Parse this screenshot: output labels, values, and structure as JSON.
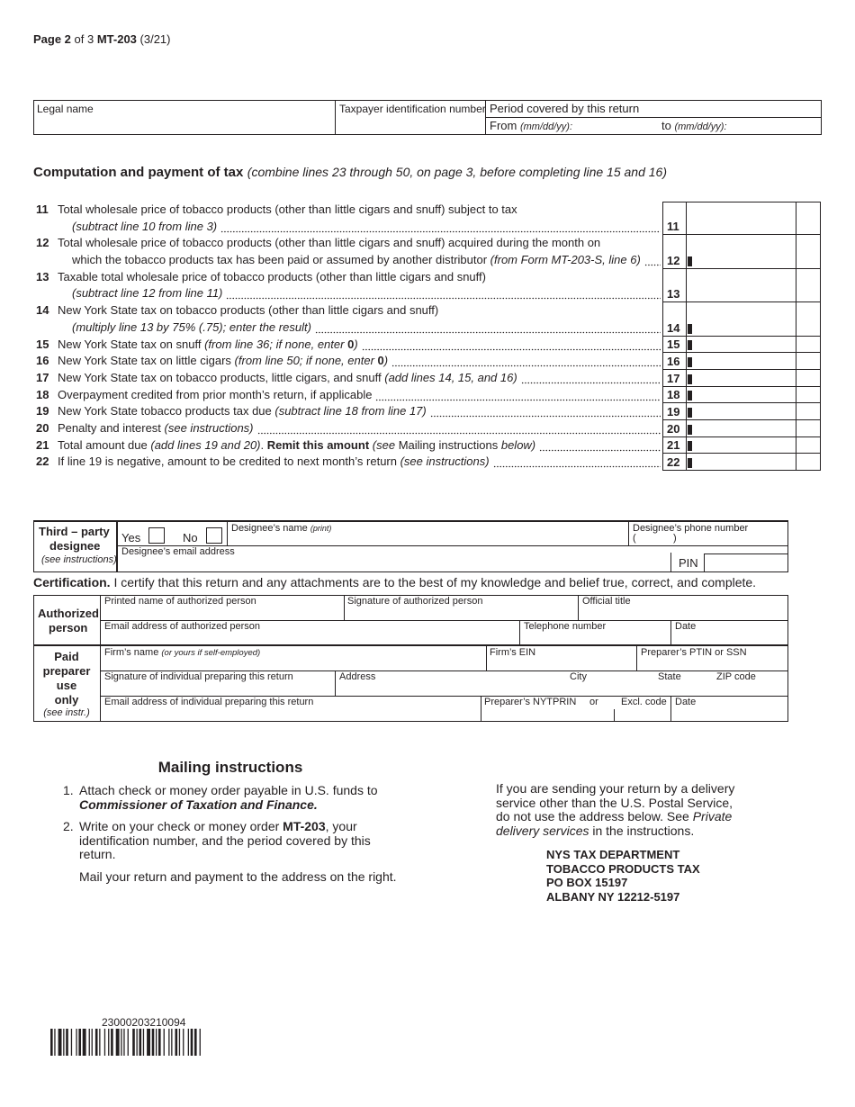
{
  "page_header": [
    {
      "text": "Page 2",
      "style": "b"
    },
    {
      "text": " of 3 "
    },
    {
      "text": " MT-203",
      "style": "b"
    },
    {
      "text": " (3/21)"
    }
  ],
  "id_box": {
    "legal_name": "Legal name",
    "tin": "Taxpayer identification number",
    "period": "Period covered by this return",
    "from": "From",
    "from_fmt": "(mm/dd/yy):",
    "to": "to",
    "to_fmt": "(mm/dd/yy):"
  },
  "computation": {
    "title": "Computation and payment of tax",
    "note": "(combine lines 23 through 50, on page 3, before completing line 15 and 16)",
    "lines": [
      {
        "number": "11",
        "rows": [
          [
            {
              "text": "Total wholesale price of tobacco products (other than little cigars and snuff) subject to tax"
            }
          ],
          [
            {
              "text": "(subtract line 10 from line 3)",
              "style": "i"
            }
          ]
        ]
      },
      {
        "number": "12",
        "marker": true,
        "rows": [
          [
            {
              "text": "Total wholesale price of tobacco products (other than little cigars and snuff) acquired during the month on"
            }
          ],
          [
            {
              "text": "which the tobacco products tax has been paid or assumed by another distributor "
            },
            {
              "text": "(from Form MT-203-S, line 6)",
              "style": "i"
            }
          ]
        ]
      },
      {
        "number": "13",
        "rows": [
          [
            {
              "text": "Taxable total wholesale price of tobacco products (other than little cigars and snuff)"
            }
          ],
          [
            {
              "text": "(subtract line 12 from line 11)",
              "style": "i"
            }
          ]
        ]
      },
      {
        "number": "14",
        "marker": true,
        "rows": [
          [
            {
              "text": "New York State tax on tobacco products (other than little cigars and snuff)"
            }
          ],
          [
            {
              "text": "(multiply line 13 by 75% (.75); enter the result)",
              "style": "i"
            }
          ]
        ]
      },
      {
        "number": "15",
        "marker": true,
        "rows": [
          [
            {
              "text": "New York State tax on snuff "
            },
            {
              "text": "(from line 36; if none, enter ",
              "style": "i"
            },
            {
              "text": "0",
              "style": "b"
            },
            {
              "text": ")",
              "style": "i"
            }
          ]
        ]
      },
      {
        "number": "16",
        "marker": true,
        "rows": [
          [
            {
              "text": "New York State tax on little cigars "
            },
            {
              "text": "(from line 50; if none, enter ",
              "style": "i"
            },
            {
              "text": "0",
              "style": "b"
            },
            {
              "text": ")",
              "style": "i"
            }
          ]
        ]
      },
      {
        "number": "17",
        "marker": true,
        "rows": [
          [
            {
              "text": "New York State tax on tobacco products, little cigars, and snuff "
            },
            {
              "text": "(add lines 14, 15, and 16)",
              "style": "i"
            }
          ]
        ]
      },
      {
        "number": "18",
        "marker": true,
        "rows": [
          [
            {
              "text": "Overpayment credited from prior month’s return, if applicable"
            }
          ]
        ]
      },
      {
        "number": "19",
        "marker": true,
        "rows": [
          [
            {
              "text": "New York State tobacco products tax due "
            },
            {
              "text": "(subtract line 18 from line 17)",
              "style": "i"
            }
          ]
        ]
      },
      {
        "number": "20",
        "marker": true,
        "rows": [
          [
            {
              "text": "Penalty and interest "
            },
            {
              "text": "(see instructions)",
              "style": "i"
            }
          ]
        ]
      },
      {
        "number": "21",
        "marker": true,
        "rows": [
          [
            {
              "text": "Total amount due "
            },
            {
              "text": "(add lines 19 and 20)",
              "style": "i"
            },
            {
              "text": ". "
            },
            {
              "text": "Remit this amount",
              "style": "b"
            },
            {
              "text": " "
            },
            {
              "text": "(see ",
              "style": "i"
            },
            {
              "text": "Mailing instructions "
            },
            {
              "text": "below)",
              "style": "i"
            }
          ]
        ]
      },
      {
        "number": "22",
        "marker": true,
        "rows": [
          [
            {
              "text": "If line 19 is negative, amount to be credited to next month’s return "
            },
            {
              "text": "(see instructions)",
              "style": "i"
            }
          ]
        ]
      }
    ]
  },
  "designee": {
    "label1": "Third – party",
    "label2": "designee",
    "note": "(see instructions)",
    "yes": "Yes",
    "no": "No",
    "name": "Designee’s name",
    "name_note": "(print)",
    "phone": "Designee’s phone number",
    "phone_open": "(",
    "phone_close": ")",
    "email": "Designee’s email address",
    "pin": "PIN"
  },
  "certification": {
    "title": "Certification.",
    "text": "I certify that this return and any attachments are to the best of my knowledge and belief true, correct, and complete."
  },
  "authorized": {
    "label1": "Authorized",
    "label2": "person",
    "printed_name": "Printed name of authorized person",
    "signature": "Signature of authorized person",
    "title": "Official title",
    "email": "Email address of authorized person",
    "phone": "Telephone number",
    "date": "Date"
  },
  "preparer": {
    "label": [
      "Paid",
      "preparer",
      "use",
      "only"
    ],
    "note": "(see instr.)",
    "firm": "Firm’s name",
    "firm_note": "(or yours if self-employed)",
    "ein": "Firm’s EIN",
    "ptin": "Preparer’s PTIN or SSN",
    "signature": "Signature of individual preparing this return",
    "address": "Address",
    "city": "City",
    "state": "State",
    "zip": "ZIP code",
    "email": "Email address of individual preparing this return",
    "nytprin": "Preparer’s NYTPRIN",
    "or": "or",
    "excl": "Excl. code",
    "date": "Date"
  },
  "mailing": {
    "title": "Mailing instructions",
    "items": [
      {
        "number": "1.",
        "text": [
          {
            "text": "Attach check or money order payable in U.S. funds to "
          },
          {
            "text": "Commissioner of Taxation and Finance.",
            "style": "bi"
          }
        ]
      },
      {
        "number": "2.",
        "text": [
          {
            "text": "Write on your check or money order "
          },
          {
            "text": "MT-203",
            "style": "b"
          },
          {
            "text": ", your identification number, and the period covered by this return."
          }
        ]
      }
    ],
    "mail_note": "Mail your return and payment to the address on the right.",
    "delivery": [
      {
        "text": "If you are sending your return by a delivery service other than the U.S. Postal Service, do not use the address below. See "
      },
      {
        "text": "Private delivery services",
        "style": "i"
      },
      {
        "text": " in the instructions."
      }
    ],
    "address": [
      "NYS TAX DEPARTMENT",
      "TOBACCO PRODUCTS TAX",
      "PO BOX 15197",
      "ALBANY NY 12212-5197"
    ]
  },
  "barcode": {
    "number": "23000203210094"
  }
}
